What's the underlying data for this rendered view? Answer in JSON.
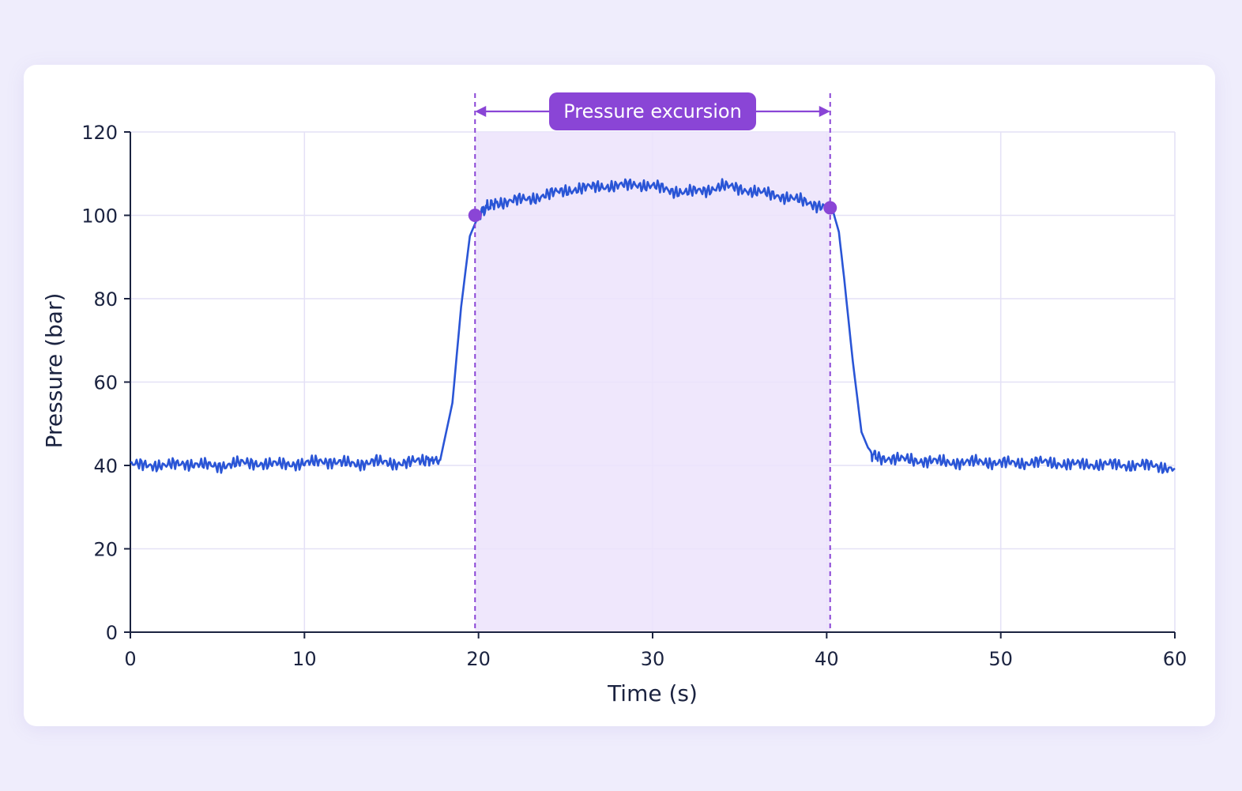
{
  "chart_data": {
    "type": "line",
    "title": "",
    "xlabel": "Time (s)",
    "ylabel": "Pressure (bar)",
    "xlim": [
      0,
      60
    ],
    "ylim": [
      0,
      120
    ],
    "xticks": [
      "0",
      "10",
      "20",
      "30",
      "40",
      "50",
      "60"
    ],
    "yticks": [
      "0",
      "20",
      "40",
      "60",
      "80",
      "100",
      "120"
    ],
    "grid": true,
    "legend": "none",
    "line_color": "#2a55d6",
    "highlight_color": "#8a45d6",
    "series": [
      {
        "x": [
          0,
          1,
          2,
          3,
          4,
          5,
          6,
          7,
          8,
          9,
          10,
          11,
          12,
          13,
          14,
          15,
          16,
          17,
          17.8,
          18.5,
          19,
          19.5,
          20,
          20.5,
          21,
          22,
          23,
          24,
          25,
          26,
          27,
          28,
          29,
          30,
          31,
          32,
          33,
          34,
          35,
          36,
          37,
          38,
          39,
          40,
          40.3,
          40.7,
          41,
          41.5,
          42,
          42.5,
          43,
          44,
          45,
          46,
          47,
          48,
          49,
          50,
          51,
          52,
          53,
          54,
          55,
          56,
          57,
          58,
          59,
          60
        ],
        "y": [
          40,
          40.3,
          39.8,
          40.6,
          40.1,
          39.9,
          40.4,
          40.7,
          40.2,
          40.5,
          40.3,
          41.2,
          40.6,
          40.4,
          40.9,
          40.5,
          40.7,
          41.2,
          41.3,
          55,
          78,
          95,
          100,
          102,
          103,
          103.5,
          104,
          105,
          106,
          106.5,
          107,
          107,
          107.5,
          107,
          106,
          105.5,
          106,
          107,
          106.5,
          105.5,
          105,
          104,
          103,
          102,
          102,
          96,
          85,
          65,
          48,
          43,
          42,
          41.5,
          41.3,
          41,
          40.8,
          40.7,
          40.9,
          40.6,
          40.5,
          40.8,
          40.6,
          40.3,
          40.2,
          40.3,
          40,
          40.1,
          39.8,
          39.3
        ]
      }
    ],
    "highlight": {
      "label": "Pressure excursion",
      "x_start": 19.8,
      "x_end": 40.2,
      "start_point": [
        19.8,
        100
      ],
      "end_point": [
        40.2,
        101.8
      ]
    }
  }
}
